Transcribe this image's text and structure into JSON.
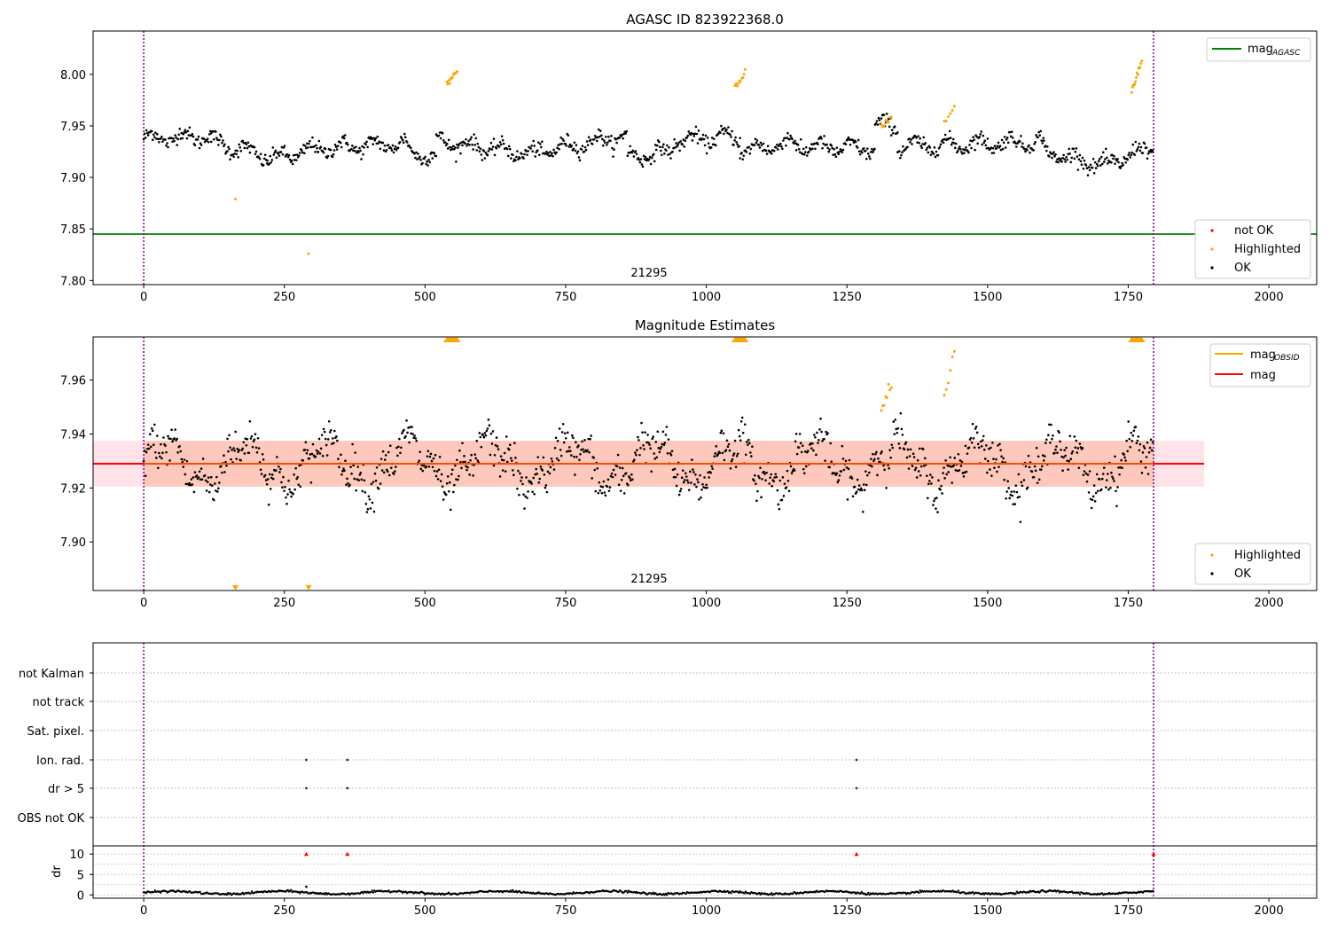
{
  "chart_data": [
    {
      "type": "scatter",
      "title": "AGASC ID 823922368.0",
      "xlim": [
        -90,
        2085
      ],
      "ylim": [
        7.796,
        8.042
      ],
      "x_ticks": [
        0,
        250,
        500,
        750,
        1000,
        1250,
        1500,
        1750,
        2000
      ],
      "y_ticks": [
        7.8,
        7.85,
        7.9,
        7.95,
        8.0
      ],
      "y_tick_labels": [
        "7.80",
        "7.85",
        "7.90",
        "7.95",
        "8.00"
      ],
      "obsid_label": "21295",
      "obsid_label_x": 897,
      "obsid_boundaries": [
        0,
        1795
      ],
      "mag_agasc": 7.845,
      "baseline": 7.93,
      "segments_ok": [
        {
          "x0": 0,
          "x1": 120,
          "y0": 7.938,
          "y1": 7.94
        },
        {
          "x0": 120,
          "x1": 220,
          "y0": 7.935,
          "y1": 7.92
        },
        {
          "x0": 220,
          "x1": 310,
          "y0": 7.917,
          "y1": 7.928
        },
        {
          "x0": 310,
          "x1": 470,
          "y0": 7.928,
          "y1": 7.933
        },
        {
          "x0": 470,
          "x1": 520,
          "y0": 7.925,
          "y1": 7.92
        },
        {
          "x0": 520,
          "x1": 700,
          "y0": 7.935,
          "y1": 7.922
        },
        {
          "x0": 700,
          "x1": 860,
          "y0": 7.925,
          "y1": 7.94
        },
        {
          "x0": 860,
          "x1": 940,
          "y0": 7.92,
          "y1": 7.925
        },
        {
          "x0": 940,
          "x1": 1060,
          "y0": 7.935,
          "y1": 7.94
        },
        {
          "x0": 1060,
          "x1": 1160,
          "y0": 7.925,
          "y1": 7.935
        },
        {
          "x0": 1160,
          "x1": 1300,
          "y0": 7.93,
          "y1": 7.928
        },
        {
          "x0": 1300,
          "x1": 1340,
          "y0": 7.95,
          "y1": 7.95
        },
        {
          "x0": 1340,
          "x1": 1600,
          "y0": 7.93,
          "y1": 7.935
        },
        {
          "x0": 1600,
          "x1": 1720,
          "y0": 7.925,
          "y1": 7.91
        },
        {
          "x0": 1720,
          "x1": 1795,
          "y0": 7.915,
          "y1": 7.93
        }
      ],
      "highlighted": [
        {
          "x": 548,
          "y0": 7.988,
          "y1": 8.005,
          "n": 12
        },
        {
          "x": 1060,
          "y0": 7.985,
          "y1": 8.002,
          "n": 10
        },
        {
          "x": 1320,
          "y0": 7.95,
          "y1": 7.958,
          "n": 8
        },
        {
          "x": 1432,
          "y0": 7.952,
          "y1": 7.968,
          "n": 6
        },
        {
          "x": 1765,
          "y0": 7.982,
          "y1": 8.012,
          "n": 14
        },
        {
          "x": 163,
          "y0": 7.879,
          "y1": 7.879,
          "n": 1
        },
        {
          "x": 293,
          "y0": 7.826,
          "y1": 7.826,
          "n": 1
        }
      ],
      "legend_top": [
        {
          "label": "mag",
          "sub": "AGASC",
          "color": "#008000"
        }
      ],
      "legend_bottom": [
        {
          "label": "not OK",
          "color": "#ff0000"
        },
        {
          "label": "Highlighted",
          "color": "#ffa500"
        },
        {
          "label": "OK",
          "color": "#000000"
        }
      ]
    },
    {
      "type": "scatter",
      "title": "Magnitude Estimates",
      "xlim": [
        -90,
        2085
      ],
      "ylim": [
        7.882,
        7.976
      ],
      "x_ticks": [
        0,
        250,
        500,
        750,
        1000,
        1250,
        1500,
        1750,
        2000
      ],
      "y_ticks": [
        7.9,
        7.92,
        7.94,
        7.96
      ],
      "y_tick_labels": [
        "7.90",
        "7.92",
        "7.94",
        "7.96"
      ],
      "obsid_label": "21295",
      "obsid_label_x": 897,
      "obsid_boundaries": [
        0,
        1795
      ],
      "mag": 7.929,
      "band": [
        7.9205,
        7.9375
      ],
      "band_x": [
        -90,
        1885
      ],
      "mag_obsid_x": [
        0,
        1795
      ],
      "highlighted": [
        {
          "x": 1320,
          "y0": 7.95,
          "y1": 7.958,
          "n": 8
        },
        {
          "x": 1432,
          "y0": 7.955,
          "y1": 7.968,
          "n": 6
        }
      ],
      "off_scale_up": [
        548,
        1060,
        1765
      ],
      "off_scale_down": [
        163,
        293
      ],
      "legend_top": [
        {
          "label": "mag",
          "sub": "OBSID",
          "color": "#ffa500"
        },
        {
          "label": "mag",
          "sub": "",
          "color": "#ff0000"
        }
      ],
      "legend_bottom": [
        {
          "label": "Highlighted",
          "color": "#ffa500"
        },
        {
          "label": "OK",
          "color": "#000000"
        }
      ]
    },
    {
      "type": "scatter",
      "title": "",
      "xlim": [
        -90,
        2085
      ],
      "flag_rows": [
        "not Kalman",
        "not track",
        "Sat. pixel.",
        "Ion. rad.",
        "dr > 5",
        "OBS not OK"
      ],
      "flag_points": {
        "Ion. rad.": [
          289,
          362,
          1267
        ],
        "dr > 5": [
          289,
          362,
          1267
        ]
      },
      "dr_ylim": [
        -0.8,
        12
      ],
      "dr_ticks": [
        0,
        5,
        10
      ],
      "dr_ylabel": "dr",
      "dr_red_points": [
        289,
        362,
        1267,
        1795
      ],
      "x_ticks": [
        0,
        250,
        500,
        750,
        1000,
        1250,
        1500,
        1750,
        2000
      ],
      "obsid_boundaries": [
        0,
        1795
      ]
    }
  ]
}
